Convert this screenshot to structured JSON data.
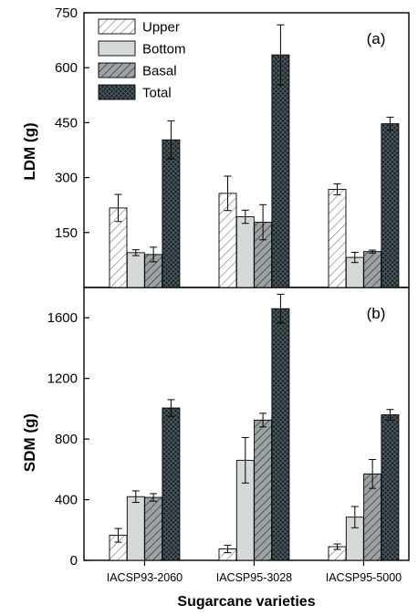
{
  "chart_data": [
    {
      "type": "bar",
      "panel_label": "(a)",
      "ylabel": "LDM (g)",
      "ylim": [
        0,
        750
      ],
      "yticks": [
        150,
        300,
        450,
        600,
        750
      ],
      "categories": [
        "IACSP93-2060",
        "IACSP95-3028",
        "IACSP95-5000"
      ],
      "legend_position": "top-left",
      "series": [
        {
          "name": "Upper",
          "values": [
            217,
            257,
            268
          ],
          "errors": [
            37,
            47,
            15
          ],
          "pattern": "hatch-light",
          "color": "#ffffff"
        },
        {
          "name": "Bottom",
          "values": [
            95,
            193,
            82
          ],
          "errors": [
            8,
            18,
            14
          ],
          "pattern": "solid",
          "color": "#d6d9da"
        },
        {
          "name": "Basal",
          "values": [
            90,
            178,
            98
          ],
          "errors": [
            20,
            48,
            4
          ],
          "pattern": "hatch-gray",
          "color": "#8e9396"
        },
        {
          "name": "Total",
          "values": [
            403,
            635,
            447
          ],
          "errors": [
            52,
            82,
            18
          ],
          "pattern": "crosshatch-dark",
          "color": "#1f2a2e"
        }
      ]
    },
    {
      "type": "bar",
      "panel_label": "(b)",
      "ylabel": "SDM (g)",
      "ylim": [
        0,
        1800
      ],
      "yticks": [
        0,
        400,
        800,
        1200,
        1600
      ],
      "categories": [
        "IACSP93-2060",
        "IACSP95-3028",
        "IACSP95-5000"
      ],
      "xlabel": "Sugarcane varieties",
      "series": [
        {
          "name": "Upper",
          "values": [
            165,
            75,
            90
          ],
          "errors": [
            45,
            25,
            18
          ]
        },
        {
          "name": "Bottom",
          "values": [
            420,
            660,
            285
          ],
          "errors": [
            38,
            150,
            70
          ]
        },
        {
          "name": "Basal",
          "values": [
            415,
            925,
            570
          ],
          "errors": [
            25,
            45,
            95
          ]
        },
        {
          "name": "Total",
          "values": [
            1005,
            1660,
            960
          ],
          "errors": [
            55,
            95,
            35
          ]
        }
      ]
    }
  ]
}
